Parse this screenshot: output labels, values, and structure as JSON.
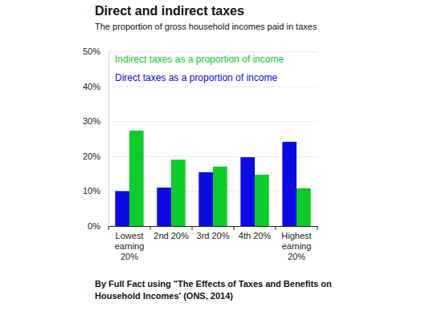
{
  "chart_data": {
    "type": "bar",
    "title": "Direct and indirect taxes",
    "subtitle": "The proportion of gross household incomes paid in taxes",
    "source": "By Full Fact using \"The Effects of Taxes and Benefits on Household Incomes' (ONS, 2014)",
    "categories": [
      "Lowest earning 20%",
      "2nd 20%",
      "3rd 20%",
      "4th 20%",
      "Highest earning 20%"
    ],
    "series": [
      {
        "name": "Direct taxes as a proportion of income",
        "color": "#0a0ae6",
        "values": [
          10,
          11,
          15.4,
          19.7,
          24.1
        ]
      },
      {
        "name": "Indirect taxes as a proportion of income",
        "color": "#0ccc2a",
        "values": [
          27.3,
          19,
          17,
          14.7,
          10.8
        ]
      }
    ],
    "ylim": [
      0,
      50
    ],
    "yticks": [
      {
        "value": 0,
        "label": "0%"
      },
      {
        "value": 10,
        "label": "10%"
      },
      {
        "value": 20,
        "label": "20%"
      },
      {
        "value": 30,
        "label": "30%"
      },
      {
        "value": 40,
        "label": "40%"
      },
      {
        "value": 50,
        "label": "50%"
      }
    ],
    "grid": true,
    "legend": "top-left"
  }
}
